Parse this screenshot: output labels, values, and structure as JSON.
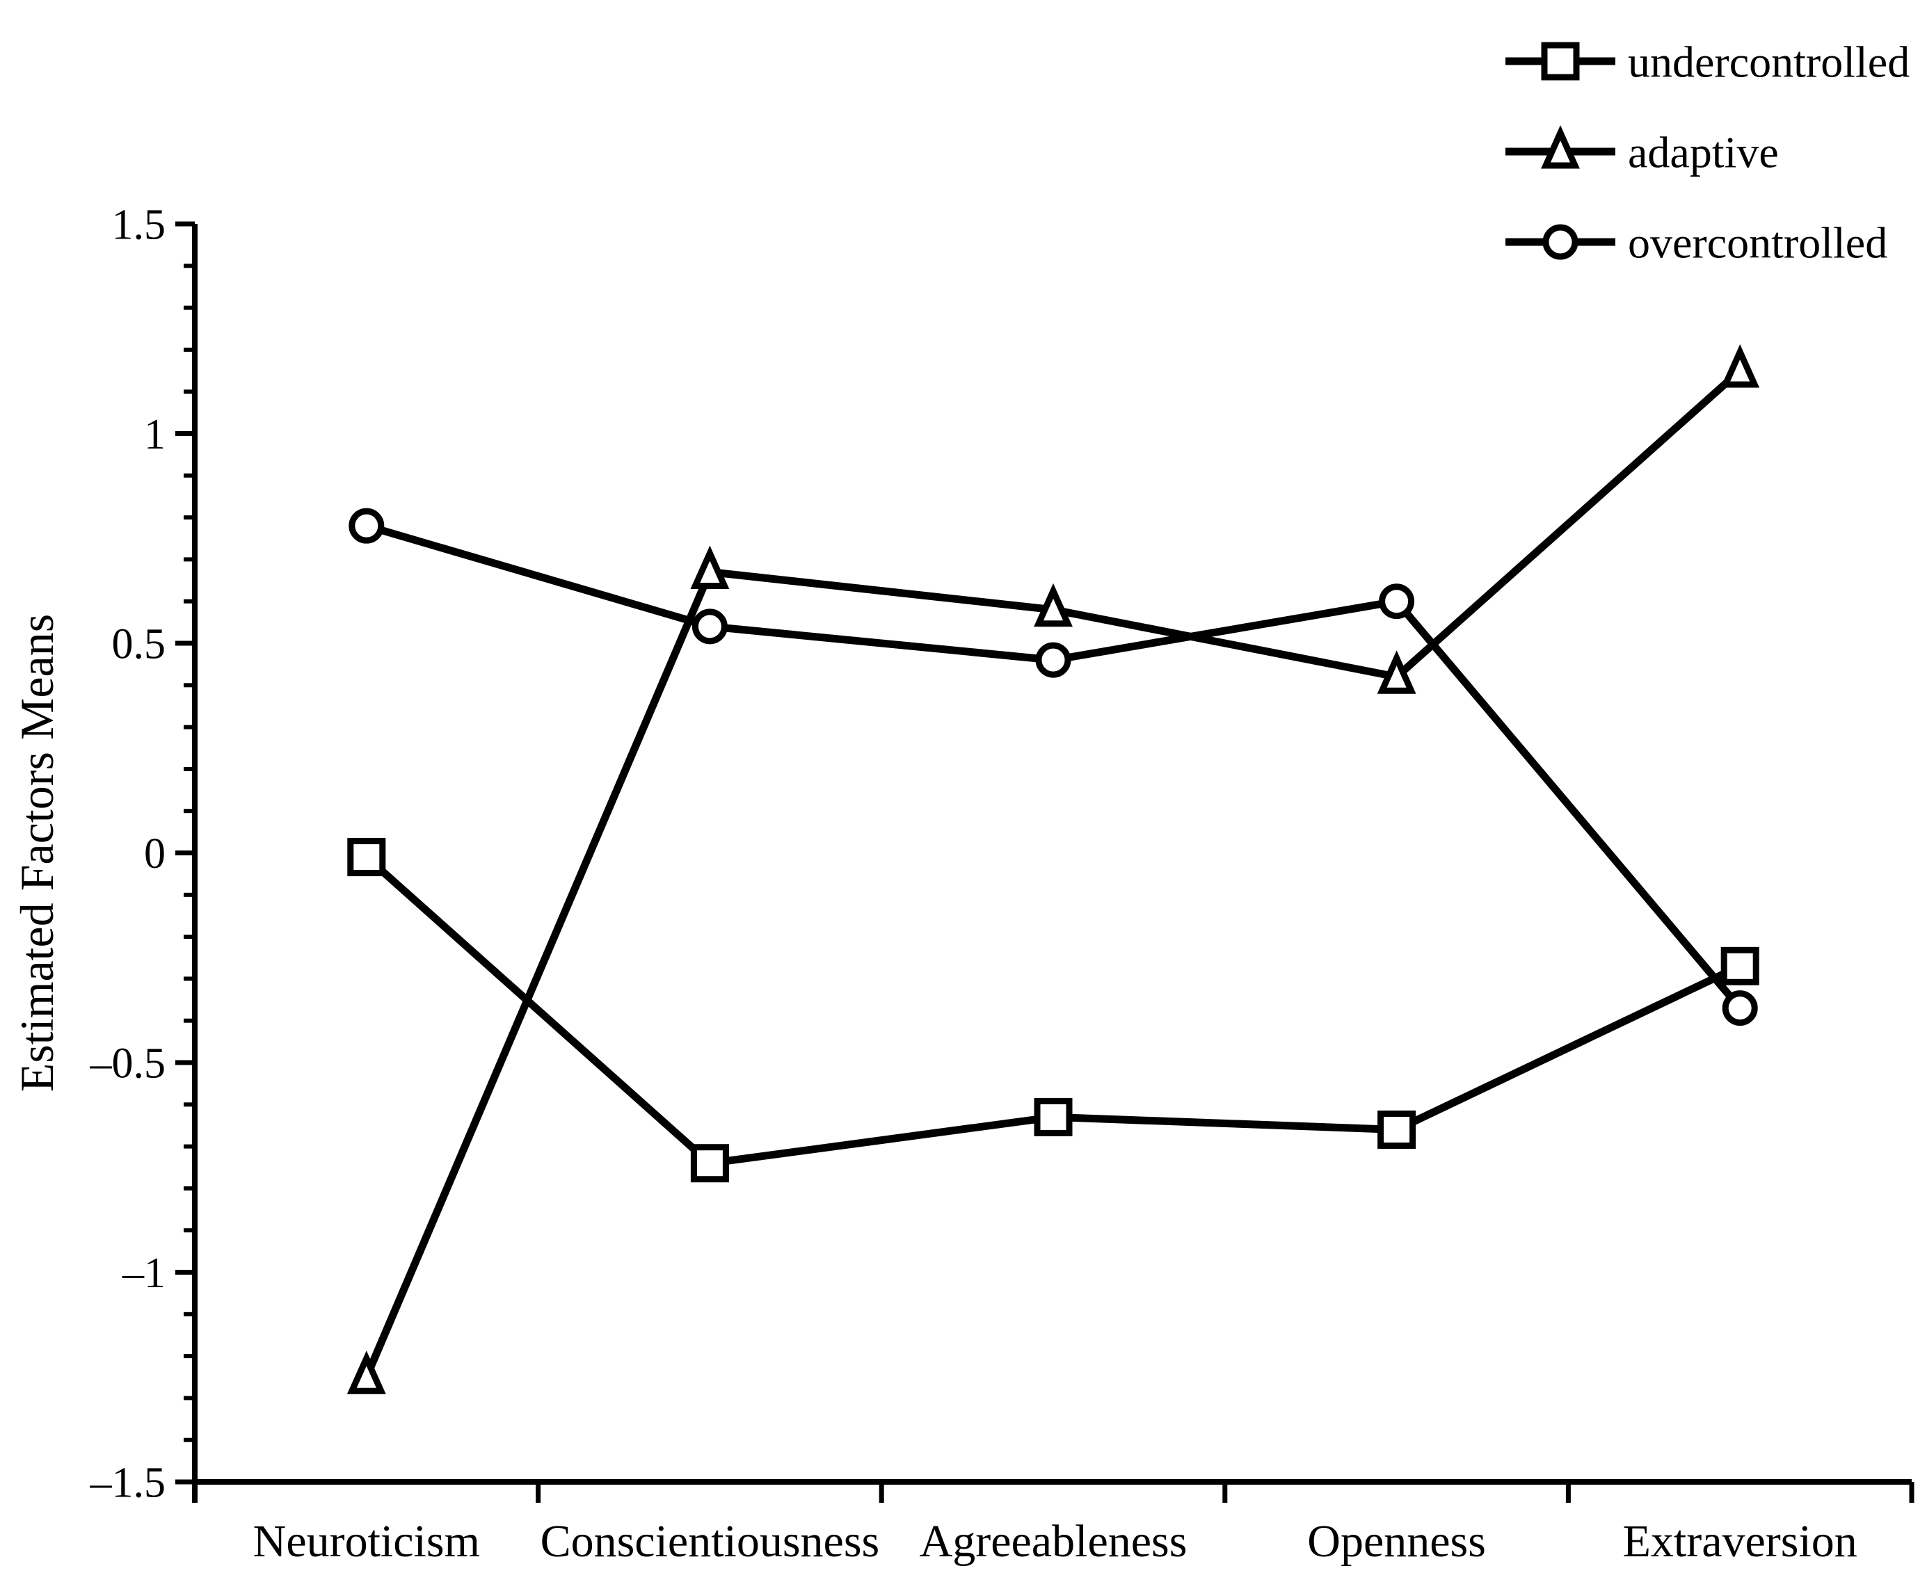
{
  "figure": {
    "background": "#ffffff",
    "ink": "#000000"
  },
  "chart_data": {
    "type": "line",
    "title": "",
    "xlabel": "",
    "ylabel": "Estimated Factors Means",
    "categories": [
      "Neuroticism",
      "Conscientiousness",
      "Agreeableness",
      "Openness",
      "Extraversion"
    ],
    "series": [
      {
        "name": "undercontrolled",
        "marker": "square",
        "values": [
          -0.01,
          -0.74,
          -0.63,
          -0.66,
          -0.27
        ]
      },
      {
        "name": "adaptive",
        "marker": "triangle",
        "values": [
          -1.25,
          0.67,
          0.58,
          0.42,
          1.15
        ]
      },
      {
        "name": "overcontrolled",
        "marker": "circle",
        "values": [
          0.78,
          0.54,
          0.46,
          0.6,
          -0.37
        ]
      }
    ],
    "ylim": [
      -1.5,
      1.5
    ],
    "ytick_step": 0.5,
    "yminor_step": 0.1,
    "ytick_labels": [
      "1.5",
      "1",
      "0.5",
      "0",
      "–0.5",
      "–1",
      "–1.5"
    ],
    "grid": false,
    "legend_position": "top-right",
    "legend": [
      "undercontrolled",
      "adaptive",
      "overcontrolled"
    ],
    "line_color": "#000000",
    "marker_fill": "#ffffff"
  }
}
